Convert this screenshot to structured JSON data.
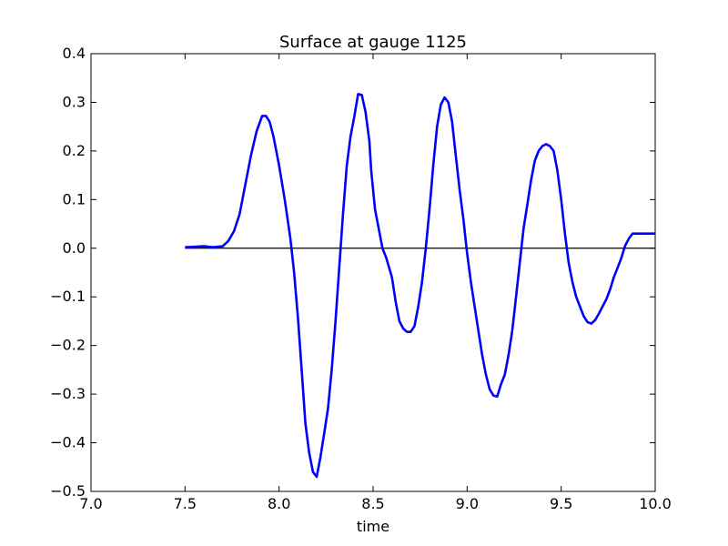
{
  "chart_data": {
    "type": "line",
    "title": "Surface at gauge 1125",
    "xlabel": "time",
    "ylabel": "",
    "xlim": [
      7.0,
      10.0
    ],
    "ylim": [
      -0.5,
      0.4
    ],
    "xticks": [
      7.0,
      7.5,
      8.0,
      8.5,
      9.0,
      9.5,
      10.0
    ],
    "xtick_labels": [
      "7.0",
      "7.5",
      "8.0",
      "8.5",
      "9.0",
      "9.5",
      "10.0"
    ],
    "yticks": [
      0.4,
      0.3,
      0.2,
      0.1,
      0.0,
      -0.1,
      -0.2,
      -0.3,
      -0.4,
      -0.5
    ],
    "ytick_labels": [
      "0.4",
      "0.3",
      "0.2",
      "0.1",
      "0.0",
      "−0.1",
      "−0.2",
      "−0.3",
      "−0.4",
      "−0.5"
    ],
    "grid": false,
    "reference_line": {
      "y": 0.0,
      "x_from": 7.5,
      "x_to": 10.0,
      "color": "#000000"
    },
    "series": [
      {
        "color": "#0000ff",
        "x": [
          7.5,
          7.55,
          7.6,
          7.65,
          7.7,
          7.73,
          7.76,
          7.79,
          7.82,
          7.85,
          7.88,
          7.91,
          7.93,
          7.95,
          7.97,
          8.0,
          8.03,
          8.06,
          8.08,
          8.1,
          8.12,
          8.14,
          8.16,
          8.18,
          8.2,
          8.22,
          8.24,
          8.26,
          8.28,
          8.3,
          8.32,
          8.34,
          8.36,
          8.38,
          8.4,
          8.42,
          8.44,
          8.46,
          8.48,
          8.49,
          8.51,
          8.53,
          8.55,
          8.57,
          8.6,
          8.62,
          8.64,
          8.66,
          8.68,
          8.7,
          8.72,
          8.74,
          8.76,
          8.78,
          8.8,
          8.82,
          8.84,
          8.86,
          8.88,
          8.9,
          8.92,
          8.94,
          8.96,
          8.98,
          9.0,
          9.02,
          9.04,
          9.06,
          9.08,
          9.1,
          9.12,
          9.14,
          9.16,
          9.18,
          9.2,
          9.22,
          9.24,
          9.26,
          9.28,
          9.3,
          9.32,
          9.34,
          9.36,
          9.38,
          9.4,
          9.42,
          9.44,
          9.46,
          9.48,
          9.5,
          9.52,
          9.54,
          9.56,
          9.58,
          9.6,
          9.62,
          9.64,
          9.66,
          9.68,
          9.7,
          9.72,
          9.74,
          9.76,
          9.78,
          9.8,
          9.82,
          9.84,
          9.86,
          9.88,
          9.9,
          9.92,
          9.94,
          9.96,
          9.98,
          10.0
        ],
        "y": [
          0.002,
          0.003,
          0.004,
          0.002,
          0.004,
          0.015,
          0.035,
          0.07,
          0.13,
          0.19,
          0.24,
          0.272,
          0.272,
          0.26,
          0.23,
          0.17,
          0.1,
          0.02,
          -0.05,
          -0.14,
          -0.25,
          -0.36,
          -0.42,
          -0.46,
          -0.47,
          -0.43,
          -0.38,
          -0.33,
          -0.25,
          -0.15,
          -0.04,
          0.07,
          0.17,
          0.23,
          0.27,
          0.317,
          0.315,
          0.28,
          0.22,
          0.16,
          0.08,
          0.04,
          0.0,
          -0.02,
          -0.06,
          -0.11,
          -0.15,
          -0.165,
          -0.172,
          -0.172,
          -0.16,
          -0.12,
          -0.07,
          0.0,
          0.08,
          0.17,
          0.25,
          0.295,
          0.31,
          0.3,
          0.26,
          0.19,
          0.12,
          0.06,
          -0.01,
          -0.07,
          -0.12,
          -0.17,
          -0.22,
          -0.26,
          -0.29,
          -0.303,
          -0.305,
          -0.28,
          -0.26,
          -0.22,
          -0.17,
          -0.1,
          -0.03,
          0.04,
          0.09,
          0.14,
          0.18,
          0.2,
          0.21,
          0.214,
          0.21,
          0.2,
          0.16,
          0.1,
          0.03,
          -0.03,
          -0.07,
          -0.1,
          -0.12,
          -0.14,
          -0.152,
          -0.155,
          -0.148,
          -0.135,
          -0.12,
          -0.105,
          -0.085,
          -0.06,
          -0.04,
          -0.02,
          0.005,
          0.02,
          0.03,
          0.03,
          0.03,
          0.03,
          0.03,
          0.03,
          0.03
        ]
      }
    ]
  }
}
